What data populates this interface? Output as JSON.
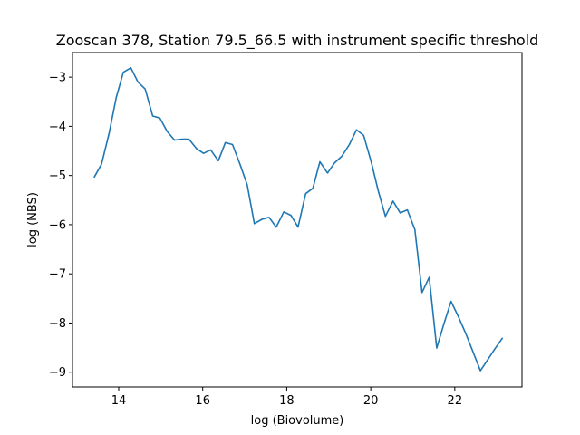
{
  "chart_data": {
    "type": "line",
    "title": "Zooscan 378, Station 79.5_66.5 with instrument specific threshold",
    "xlabel": "log (Biovolume)",
    "ylabel": "log (NBS)",
    "xlim": [
      12.9,
      23.6
    ],
    "ylim": [
      -9.3,
      -2.5
    ],
    "xticks": [
      14,
      16,
      18,
      20,
      22
    ],
    "yticks": [
      -3,
      -4,
      -5,
      -6,
      -7,
      -8,
      -9
    ],
    "grid": false,
    "line_color": "#1f77b4",
    "series": [
      {
        "x": [
          13.42,
          13.59,
          13.77,
          13.94,
          14.11,
          14.29,
          14.46,
          14.63,
          14.81,
          14.98,
          15.15,
          15.33,
          15.5,
          15.67,
          15.85,
          16.02,
          16.19,
          16.37,
          16.54,
          16.71,
          16.89,
          17.06,
          17.23,
          17.41,
          17.58,
          17.75,
          17.93,
          18.1,
          18.27,
          18.45,
          18.62,
          18.79,
          18.97,
          19.14,
          19.31,
          19.49,
          19.66,
          19.83,
          20.01,
          20.18,
          20.35,
          20.53,
          20.7,
          20.87,
          21.05,
          21.22,
          21.39,
          21.57,
          21.74,
          21.91,
          22.09,
          22.26,
          22.43,
          22.61,
          22.78,
          22.95,
          23.13
        ],
        "y": [
          -5.03,
          -4.77,
          -4.15,
          -3.42,
          -2.9,
          -2.81,
          -3.1,
          -3.24,
          -3.79,
          -3.83,
          -4.1,
          -4.28,
          -4.26,
          -4.26,
          -4.45,
          -4.55,
          -4.48,
          -4.7,
          -4.33,
          -4.37,
          -4.78,
          -5.19,
          -5.98,
          -5.89,
          -5.85,
          -6.05,
          -5.74,
          -5.81,
          -6.05,
          -5.37,
          -5.26,
          -4.72,
          -4.95,
          -4.74,
          -4.61,
          -4.37,
          -4.07,
          -4.18,
          -4.72,
          -5.32,
          -5.83,
          -5.52,
          -5.76,
          -5.7,
          -6.1,
          -7.38,
          -7.07,
          -8.51,
          -8.02,
          -7.56,
          -7.88,
          -8.21,
          -8.58,
          -8.97,
          -8.75,
          -8.53,
          -8.31
        ]
      }
    ]
  }
}
